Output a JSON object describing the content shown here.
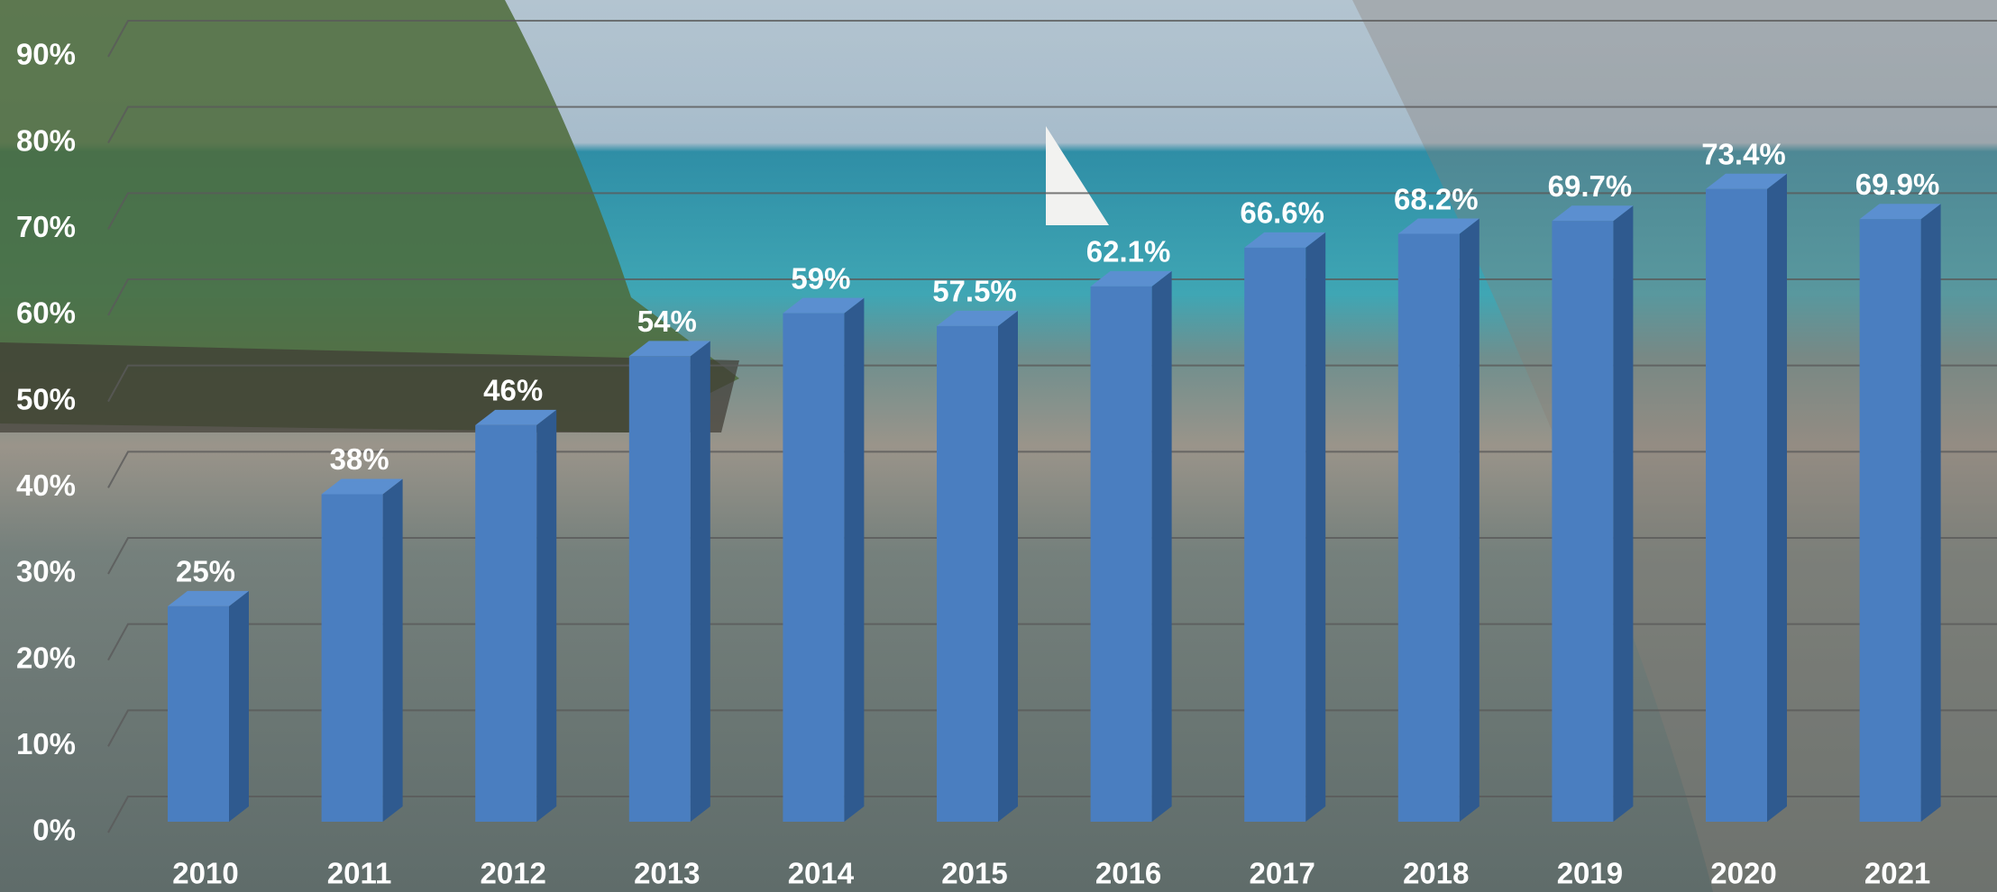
{
  "chart_data": {
    "type": "bar3d",
    "categories": [
      "2010",
      "2011",
      "2012",
      "2013",
      "2014",
      "2015",
      "2016",
      "2017",
      "2018",
      "2019",
      "2020",
      "2021"
    ],
    "values": [
      25,
      38,
      46,
      54,
      59,
      57.5,
      62.1,
      66.6,
      68.2,
      69.7,
      73.4,
      69.9
    ],
    "value_labels": [
      "25%",
      "38%",
      "46%",
      "54%",
      "59%",
      "57.5%",
      "62.1%",
      "66.6%",
      "68.2%",
      "69.7%",
      "73.4%",
      "69.9%"
    ],
    "color": "#4a7ec0",
    "ylim": [
      0,
      90
    ],
    "yticks": [
      {
        "value": 0,
        "label": "0%"
      },
      {
        "value": 10,
        "label": "10%"
      },
      {
        "value": 20,
        "label": "20%"
      },
      {
        "value": 30,
        "label": "30%"
      },
      {
        "value": 40,
        "label": "40%"
      },
      {
        "value": 50,
        "label": "50%"
      },
      {
        "value": 60,
        "label": "60%"
      },
      {
        "value": 70,
        "label": "70%"
      },
      {
        "value": 80,
        "label": "80%"
      },
      {
        "value": 90,
        "label": "90%"
      }
    ],
    "grid": true
  }
}
